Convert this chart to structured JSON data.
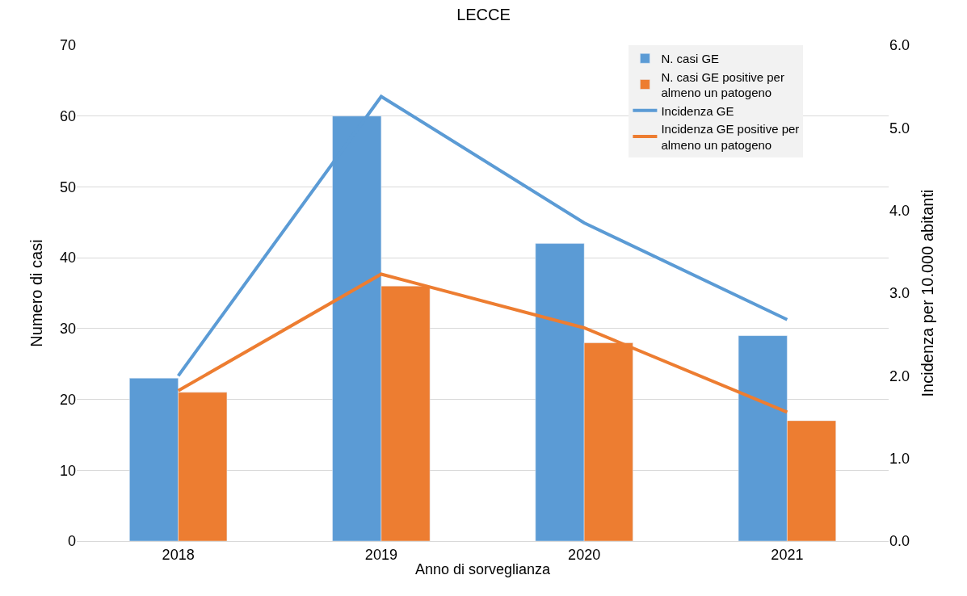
{
  "chart_data": {
    "type": "bar",
    "title": "LECCE",
    "xlabel": "Anno di sorveglianza",
    "ylabel": "Numero di casi",
    "y2label": "Incidenza per 10.000 abitanti",
    "categories": [
      "2018",
      "2019",
      "2020",
      "2021"
    ],
    "series": [
      {
        "name": "N. casi GE",
        "color": "#5b9bd5",
        "values": [
          23,
          60,
          42,
          29
        ]
      },
      {
        "name": "N. casi GE positive per almeno un patogeno",
        "color": "#ed7d31",
        "values": [
          21,
          36,
          28,
          17
        ]
      },
      {
        "name": "Incidenza GE",
        "type": "line",
        "axis": "y2",
        "color": "#5b9bd5",
        "values": [
          2.0,
          5.38,
          3.85,
          2.68
        ]
      },
      {
        "name": "Incidenza GE positive per almeno un patogeno",
        "type": "line",
        "axis": "y2",
        "color": "#ed7d31",
        "values": [
          1.82,
          3.23,
          2.58,
          1.56
        ]
      }
    ],
    "ylim": [
      0,
      70
    ],
    "yticks": [
      0,
      10,
      20,
      30,
      40,
      50,
      60,
      70
    ],
    "y2lim": [
      0,
      6
    ],
    "y2ticks": [
      {
        "value": 0,
        "label": "0.0"
      },
      {
        "value": 1,
        "label": "1.0"
      },
      {
        "value": 2,
        "label": "2.0"
      },
      {
        "value": 3,
        "label": "3.0"
      },
      {
        "value": 4,
        "label": "4.0"
      },
      {
        "value": 5,
        "label": "5.0"
      },
      {
        "value": 6,
        "label": "6.0"
      }
    ],
    "grid": "y",
    "legend": "top right",
    "marker": "none",
    "line_style": "solid"
  }
}
